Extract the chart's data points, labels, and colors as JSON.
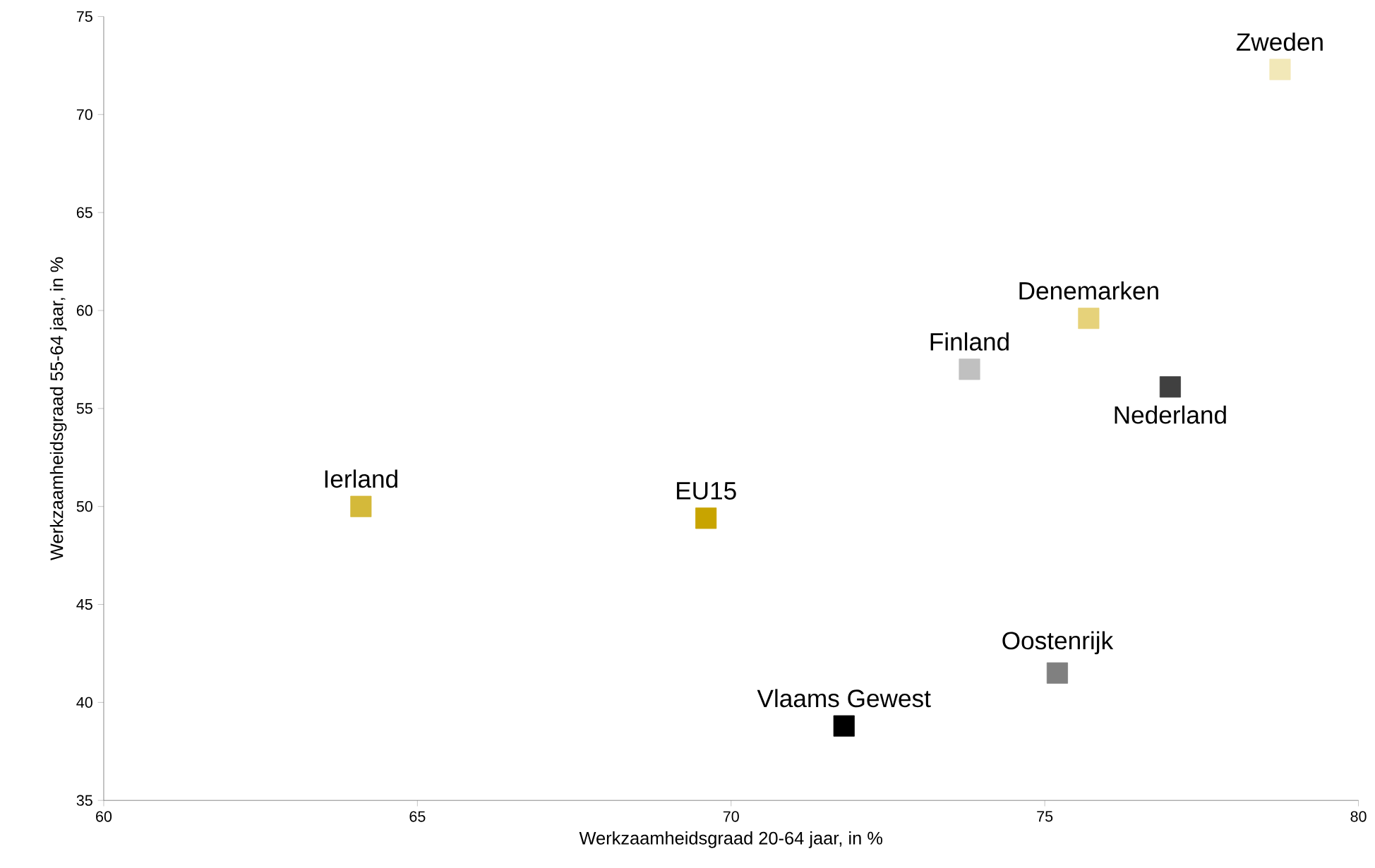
{
  "chart_data": {
    "type": "scatter",
    "xlabel": "Werkzaamheidsgraad 20-64 jaar, in %",
    "ylabel": "Werkzaamheidsgraad 55-64 jaar, in %",
    "xlim": [
      60,
      80
    ],
    "ylim": [
      35,
      75
    ],
    "xticks": [
      60,
      65,
      70,
      75,
      80
    ],
    "yticks": [
      35,
      40,
      45,
      50,
      55,
      60,
      65,
      70,
      75
    ],
    "grid": false,
    "legend": false,
    "marker": "square",
    "series": [
      {
        "name": "Zweden",
        "color": "#f2e8b8",
        "x": [
          78.75
        ],
        "values": [
          72.3
        ]
      },
      {
        "name": "Denemarken",
        "color": "#e6d27a",
        "x": [
          75.7
        ],
        "values": [
          59.6
        ]
      },
      {
        "name": "Finland",
        "color": "#c0c0c0",
        "x": [
          73.8
        ],
        "values": [
          57.0
        ]
      },
      {
        "name": "Nederland",
        "color": "#404040",
        "x": [
          77.0
        ],
        "values": [
          56.1
        ]
      },
      {
        "name": "Ierland",
        "color": "#d4b93a",
        "x": [
          64.1
        ],
        "values": [
          50.0
        ]
      },
      {
        "name": "EU15",
        "color": "#c8a400",
        "x": [
          69.6
        ],
        "values": [
          49.4
        ]
      },
      {
        "name": "Oostenrijk",
        "color": "#808080",
        "x": [
          75.2
        ],
        "values": [
          41.5
        ]
      },
      {
        "name": "Vlaams Gewest",
        "color": "#000000",
        "x": [
          71.8
        ],
        "values": [
          38.8
        ]
      }
    ]
  }
}
